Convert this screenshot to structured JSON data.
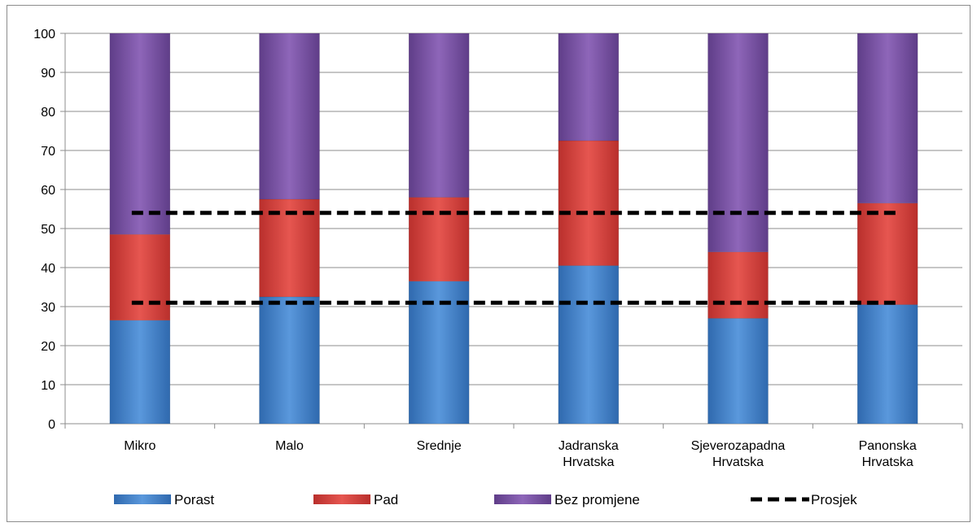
{
  "chart_data": {
    "type": "bar",
    "stacked": true,
    "categories": [
      [
        "Mikro"
      ],
      [
        "Malo"
      ],
      [
        "Srednje"
      ],
      [
        "Jadranska",
        "Hrvatska"
      ],
      [
        "Sjeverozapadna",
        "Hrvatska"
      ],
      [
        "Panonska",
        "Hrvatska"
      ]
    ],
    "series": [
      {
        "name": "Porast",
        "color": "#4a86c8",
        "values": [
          26.5,
          32.5,
          36.5,
          40.5,
          27.0,
          30.5
        ]
      },
      {
        "name": "Pad",
        "color": "#d9413c",
        "values": [
          22.0,
          25.0,
          21.5,
          32.0,
          17.0,
          26.0
        ]
      },
      {
        "name": "Bez promjene",
        "color": "#7b52a6",
        "values": [
          51.5,
          42.5,
          42.0,
          27.5,
          56.0,
          43.5
        ]
      }
    ],
    "reference_lines": [
      {
        "name": "Prosjek",
        "style": "dashed",
        "color": "#000000",
        "values": [
          54,
          31
        ]
      }
    ],
    "legend_labels": [
      "Porast",
      "Pad",
      "Bez promjene",
      "Prosjek"
    ],
    "ylim": [
      0,
      100
    ],
    "yticks": [
      0,
      10,
      20,
      30,
      40,
      50,
      60,
      70,
      80,
      90,
      100
    ],
    "legend_position": "bottom",
    "title": "",
    "xlabel": "",
    "ylabel": ""
  }
}
